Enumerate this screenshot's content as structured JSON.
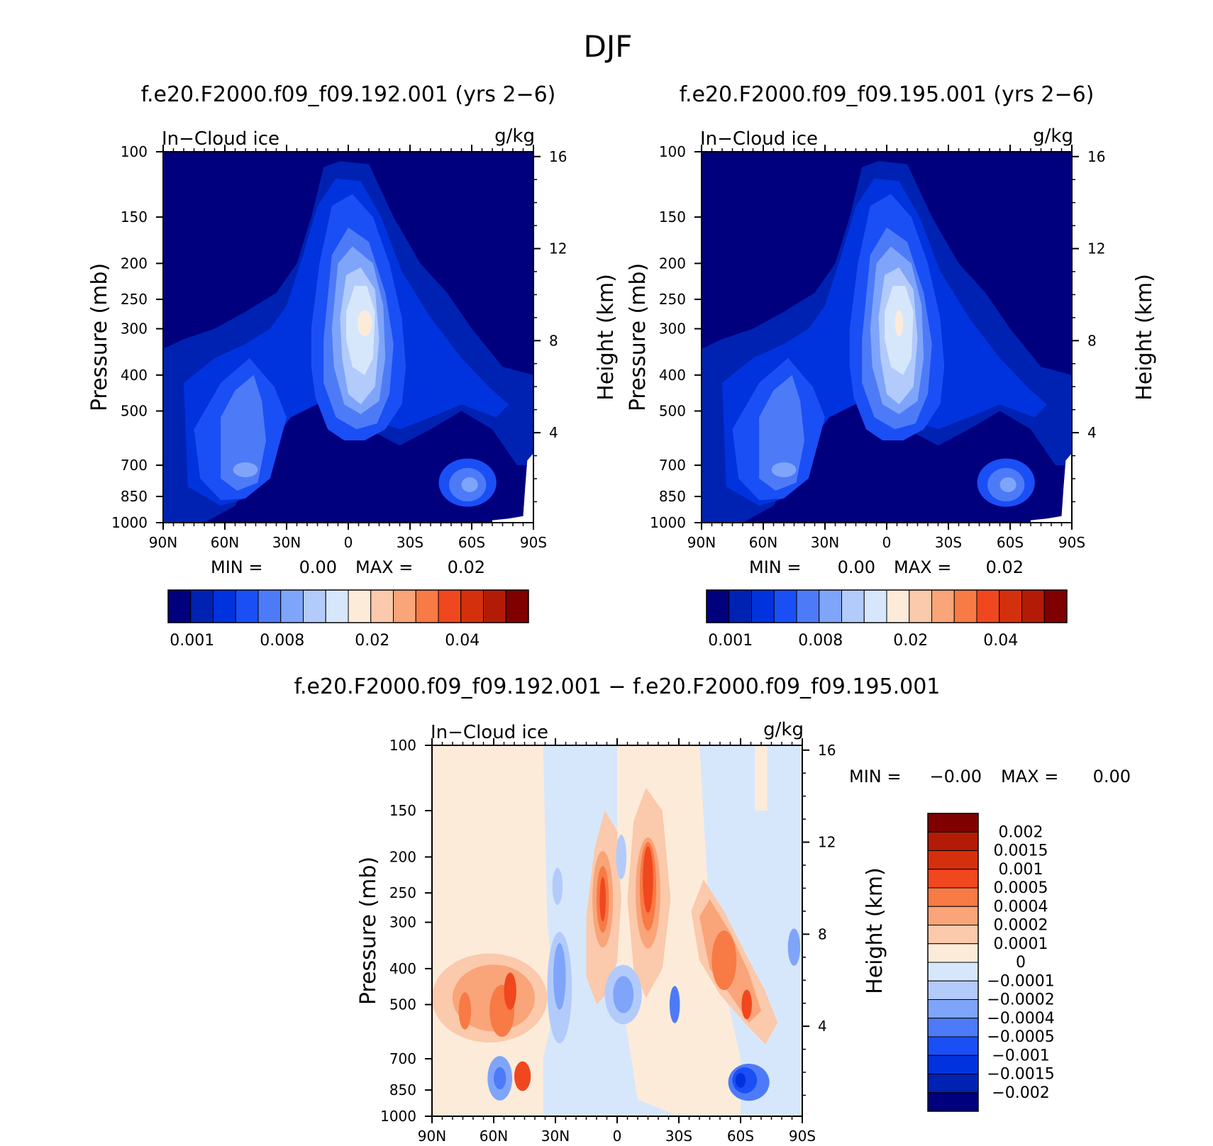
{
  "figure": {
    "season": "DJF",
    "variable": "In−Cloud ice",
    "units": "g/kg",
    "x_ticks": [
      "90N",
      "60N",
      "30N",
      "0",
      "30S",
      "60S",
      "90S"
    ],
    "p_ticks": [
      "100",
      "150",
      "200",
      "250",
      "300",
      "400",
      "500",
      "700",
      "850",
      "1000"
    ],
    "h_ticks": [
      "16",
      "12",
      "8",
      "4"
    ],
    "y_label_left": "Pressure (mb)",
    "y_label_right": "Height (km)"
  },
  "chart_data": [
    {
      "type": "heatmap",
      "title": "f.e20.F2000.f09_f09.192.001 (yrs 2−6)",
      "min_label": "MIN =",
      "min_value": "0.00",
      "max_label": "MAX =",
      "max_value": "0.02",
      "colorbar_labels": [
        "0.001",
        "0.008",
        "0.02",
        "0.04"
      ],
      "levels_shown_on_colorbar": 16,
      "features": [
        {
          "name": "tropical deep ice maximum",
          "center_lat": -8,
          "center_p": 280,
          "peak": 0.02
        },
        {
          "name": "NH midlatitude ice",
          "center_lat": 50,
          "center_p": 700,
          "peak": 0.008
        },
        {
          "name": "SH high-latitude low-level ice",
          "center_lat": -58,
          "center_p": 800,
          "peak": 0.008
        }
      ]
    },
    {
      "type": "heatmap",
      "title": "f.e20.F2000.f09_f09.195.001 (yrs 2−6)",
      "min_label": "MIN =",
      "min_value": "0.00",
      "max_label": "MAX =",
      "max_value": "0.02",
      "colorbar_labels": [
        "0.001",
        "0.008",
        "0.02",
        "0.04"
      ],
      "levels_shown_on_colorbar": 16,
      "features": [
        {
          "name": "tropical deep ice maximum",
          "center_lat": -8,
          "center_p": 290,
          "peak": 0.02
        },
        {
          "name": "NH midlatitude ice",
          "center_lat": 55,
          "center_p": 700,
          "peak": 0.008
        },
        {
          "name": "SH high-latitude low-level ice",
          "center_lat": -58,
          "center_p": 800,
          "peak": 0.008
        }
      ]
    },
    {
      "type": "heatmap",
      "title": "f.e20.F2000.f09_f09.192.001 − f.e20.F2000.f09_f09.195.001",
      "min_label": "MIN =",
      "min_value": "−0.00",
      "max_label": "MAX =",
      "max_value": "0.00",
      "colorbar_labels": [
        "0.002",
        "0.0015",
        "0.001",
        "0.0005",
        "0.0004",
        "0.0002",
        "0.0001",
        "0",
        "−0.0001",
        "−0.0002",
        "−0.0004",
        "−0.0005",
        "−0.001",
        "−0.0015",
        "−0.002"
      ],
      "features": [
        {
          "name": "positive diff NH tropics upper",
          "center_lat": 5,
          "center_p": 260,
          "peak": 0.001
        },
        {
          "name": "positive diff SH tropics upper",
          "center_lat": -17,
          "center_p": 240,
          "peak": 0.001
        },
        {
          "name": "positive diff SH midlatitudes",
          "center_lat": -50,
          "center_p": 400,
          "peak": 0.0005
        },
        {
          "name": "positive diff NH midlatitudes",
          "center_lat": 55,
          "center_p": 450,
          "peak": 0.0005
        },
        {
          "name": "negative diff SH high latitude low",
          "center_lat": -62,
          "center_p": 800,
          "peak": -0.001
        },
        {
          "name": "negative diff tropics mid",
          "center_lat": -5,
          "center_p": 450,
          "peak": -0.0004
        }
      ]
    }
  ],
  "colors": {
    "seq_palette": [
      "#00007F",
      "#0022B2",
      "#0033DD",
      "#1A4FF6",
      "#4D7BF7",
      "#7FA5FA",
      "#B2CBFB",
      "#D7E7FB",
      "#FDEBDA",
      "#FBC9AB",
      "#F9A479",
      "#F87A45",
      "#F0471E",
      "#D5300D",
      "#B31B06",
      "#800000"
    ],
    "diff_palette": [
      "#800000",
      "#B31B06",
      "#D5300D",
      "#F0471E",
      "#F87A45",
      "#F9A479",
      "#FBC9AB",
      "#FDEBDA",
      "#D7E7FB",
      "#B2CBFB",
      "#7FA5FA",
      "#4D7BF7",
      "#1A4FF6",
      "#0033DD",
      "#0022B2",
      "#00007F"
    ]
  }
}
